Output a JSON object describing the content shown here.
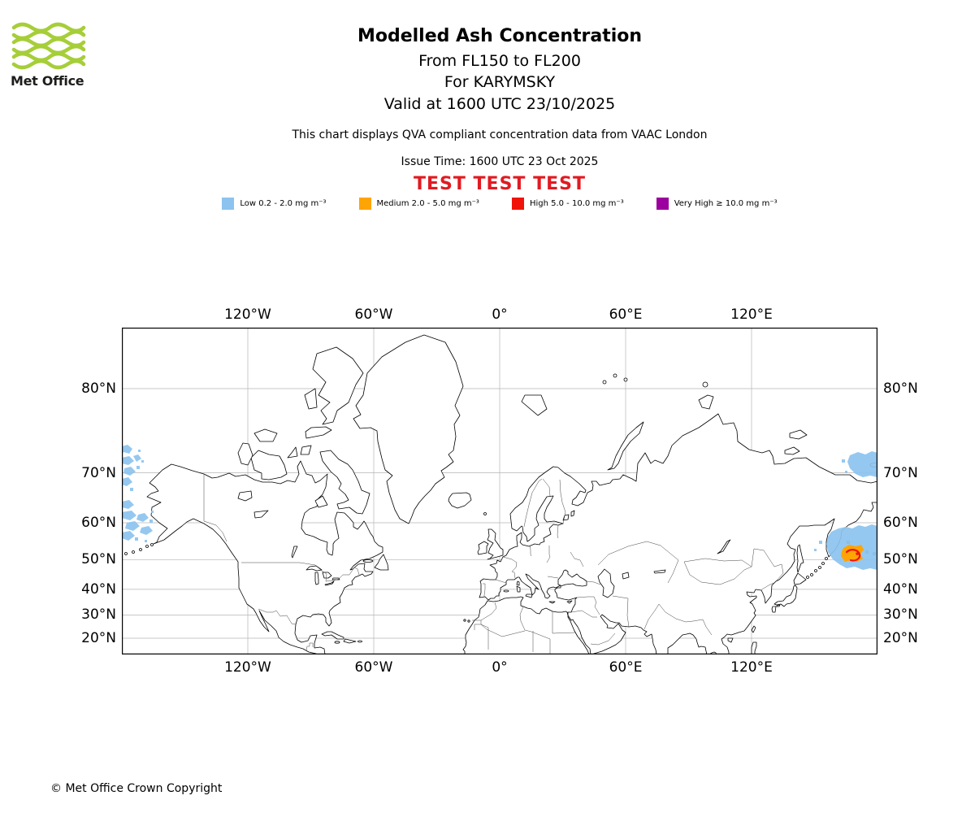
{
  "header": {
    "logo_text": "Met Office",
    "logo_color": "#A6CE39",
    "title": "Modelled Ash Concentration",
    "subtitle_fl": "From FL150 to FL200",
    "subtitle_volcano": "For KARYMSKY",
    "subtitle_valid": "Valid at 1600 UTC 23/10/2025",
    "qva_note": "This chart displays QVA compliant concentration data from VAAC London",
    "issue_time": "Issue Time: 1600 UTC 23 Oct 2025",
    "test_banner": "TEST TEST TEST",
    "test_color": "#E01B22"
  },
  "legend": {
    "items": [
      {
        "name": "low",
        "label": "Low 0.2 - 2.0 mg m⁻³",
        "color": "#8CC3EF"
      },
      {
        "name": "medium",
        "label": "Medium 2.0 - 5.0 mg m⁻³",
        "color": "#FFA405"
      },
      {
        "name": "high",
        "label": "High 5.0 - 10.0 mg m⁻³",
        "color": "#EF1309"
      },
      {
        "name": "very-high",
        "label": "Very High ≥ 10.0 mg m⁻³",
        "color": "#9C009E"
      }
    ]
  },
  "map": {
    "lon_labels": [
      "120°W",
      "60°W",
      "0°",
      "60°E",
      "120°E"
    ],
    "lat_labels": [
      "80°N",
      "70°N",
      "60°N",
      "50°N",
      "40°N",
      "30°N",
      "20°N"
    ],
    "ash_overlay": {
      "levels_present": [
        "low",
        "medium",
        "high"
      ]
    }
  },
  "footer": {
    "copyright": "© Met Office Crown Copyright"
  }
}
